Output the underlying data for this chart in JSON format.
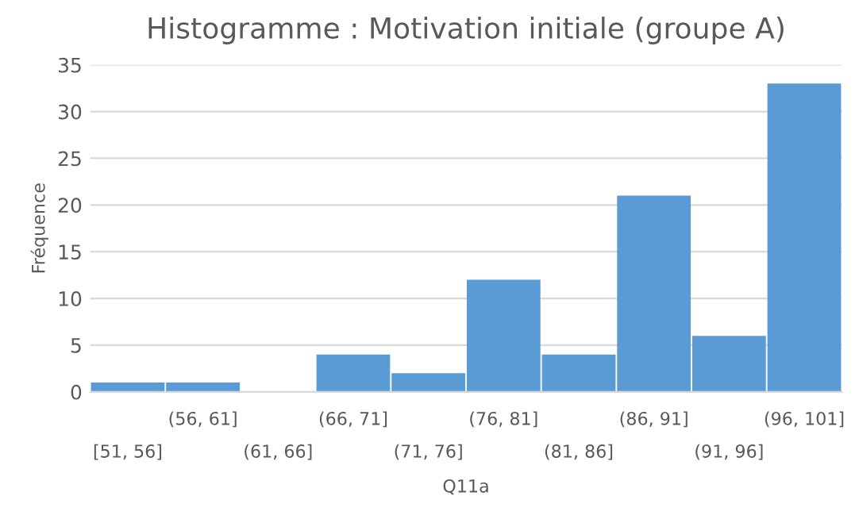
{
  "chart_data": {
    "type": "bar",
    "title": "Histogramme : Motivation initiale (groupe A)",
    "xlabel": "Q11a",
    "ylabel": "Fréquence",
    "categories": [
      "[51, 56]",
      "(56, 61]",
      "(61, 66]",
      "(66, 71]",
      "(71, 76]",
      "(76, 81]",
      "(81, 86]",
      "(86, 91]",
      "(91, 96]",
      "(96, 101]"
    ],
    "values": [
      1,
      1,
      0,
      4,
      2,
      12,
      4,
      21,
      6,
      33
    ],
    "color": "#5b9bd5",
    "ylim": [
      0,
      35
    ],
    "yticks": [
      0,
      5,
      10,
      15,
      20,
      25,
      30,
      35
    ],
    "grid": "y"
  }
}
